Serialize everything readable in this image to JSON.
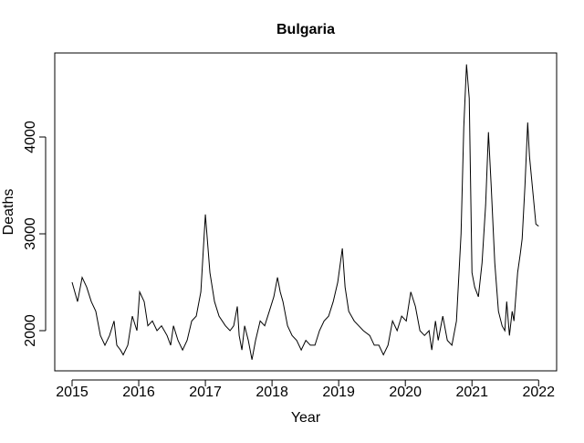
{
  "chart_data": {
    "type": "line",
    "title": "Bulgaria",
    "x_label": "Year",
    "y_label": "Deaths",
    "color": "#000000",
    "x": [
      2015.0,
      2015.082,
      2015.151,
      2015.219,
      2015.288,
      2015.356,
      2015.425,
      2015.493,
      2015.562,
      2015.63,
      2015.671,
      2015.726,
      2015.767,
      2015.836,
      2015.904,
      2015.973,
      2016.014,
      2016.082,
      2016.137,
      2016.205,
      2016.274,
      2016.342,
      2016.425,
      2016.479,
      2016.521,
      2016.589,
      2016.658,
      2016.726,
      2016.795,
      2016.863,
      2016.932,
      2017.0,
      2017.068,
      2017.137,
      2017.205,
      2017.301,
      2017.37,
      2017.425,
      2017.479,
      2017.507,
      2017.548,
      2017.589,
      2017.644,
      2017.699,
      2017.753,
      2017.822,
      2017.89,
      2017.959,
      2018.027,
      2018.082,
      2018.123,
      2018.164,
      2018.233,
      2018.301,
      2018.37,
      2018.438,
      2018.507,
      2018.575,
      2018.644,
      2018.712,
      2018.781,
      2018.849,
      2018.918,
      2018.986,
      2019.055,
      2019.096,
      2019.151,
      2019.233,
      2019.301,
      2019.37,
      2019.466,
      2019.534,
      2019.603,
      2019.671,
      2019.74,
      2019.808,
      2019.877,
      2019.945,
      2020.014,
      2020.082,
      2020.151,
      2020.219,
      2020.288,
      2020.356,
      2020.397,
      2020.452,
      2020.493,
      2020.562,
      2020.63,
      2020.699,
      2020.767,
      2020.836,
      2020.877,
      2020.918,
      2020.959,
      2021.0,
      2021.041,
      2021.096,
      2021.151,
      2021.205,
      2021.247,
      2021.288,
      2021.342,
      2021.397,
      2021.452,
      2021.493,
      2021.521,
      2021.562,
      2021.603,
      2021.63,
      2021.685,
      2021.726,
      2021.753,
      2021.795,
      2021.836,
      2021.863,
      2021.918,
      2021.959,
      2022.0
    ],
    "values": [
      2500,
      2300,
      2550,
      2450,
      2300,
      2200,
      1950,
      1850,
      1950,
      2100,
      1850,
      1800,
      1750,
      1850,
      2150,
      2000,
      2400,
      2300,
      2050,
      2100,
      2000,
      2050,
      1950,
      1850,
      2050,
      1900,
      1800,
      1900,
      2100,
      2150,
      2400,
      3200,
      2600,
      2300,
      2150,
      2050,
      2000,
      2050,
      2250,
      1950,
      1800,
      2050,
      1900,
      1700,
      1900,
      2100,
      2050,
      2200,
      2350,
      2550,
      2400,
      2300,
      2050,
      1950,
      1900,
      1800,
      1900,
      1850,
      1850,
      2000,
      2100,
      2150,
      2300,
      2500,
      2850,
      2450,
      2200,
      2100,
      2050,
      2000,
      1950,
      1850,
      1850,
      1750,
      1850,
      2100,
      2000,
      2150,
      2100,
      2400,
      2250,
      2000,
      1950,
      2000,
      1800,
      2100,
      1900,
      2150,
      1900,
      1850,
      2100,
      3000,
      4100,
      4750,
      4400,
      2600,
      2450,
      2350,
      2700,
      3300,
      4050,
      3500,
      2700,
      2200,
      2050,
      2000,
      2300,
      1950,
      2200,
      2100,
      2600,
      2800,
      2950,
      3500,
      4150,
      3800,
      3400,
      3100,
      3080
    ],
    "xlim": [
      2014.74,
      2022.27
    ],
    "xticks": [
      2015,
      2016,
      2017,
      2018,
      2019,
      2020,
      2021,
      2022
    ],
    "ylim": [
      1585,
      4868
    ],
    "yticks": [
      2000,
      3000,
      4000
    ]
  }
}
